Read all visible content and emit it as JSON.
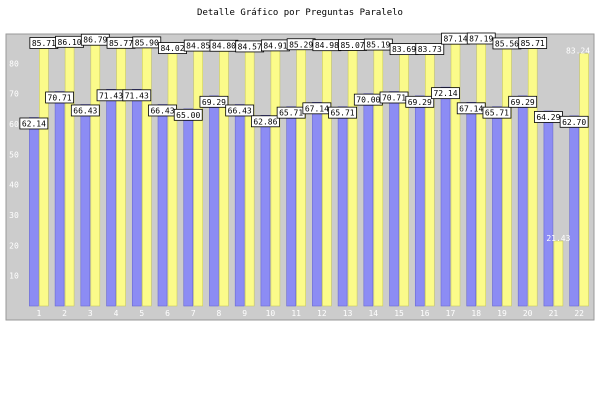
{
  "chart_data": {
    "type": "bar",
    "title": "Detalle Gráfico por Preguntas Paralelo",
    "xlabel": "",
    "ylabel": "",
    "ylim": [
      0,
      89
    ],
    "yticks": [
      10,
      20,
      30,
      40,
      50,
      60,
      70,
      80
    ],
    "grid": false,
    "categories": [
      "1",
      "2",
      "3",
      "4",
      "5",
      "6",
      "7",
      "8",
      "9",
      "10",
      "11",
      "12",
      "13",
      "14",
      "15",
      "16",
      "17",
      "18",
      "19",
      "20",
      "21",
      "22"
    ],
    "series": [
      {
        "values": [
          62.14,
          70.71,
          66.43,
          71.43,
          71.43,
          66.43,
          65.0,
          69.29,
          66.43,
          62.86,
          65.71,
          67.14,
          65.71,
          70.0,
          70.71,
          69.29,
          72.14,
          67.14,
          65.71,
          69.29,
          64.29,
          62.7
        ]
      },
      {
        "values": [
          85.71,
          86.1,
          86.79,
          85.77,
          85.9,
          84.02,
          84.85,
          84.8,
          84.57,
          84.91,
          85.29,
          84.98,
          85.07,
          85.19,
          83.69,
          83.73,
          87.14,
          87.19,
          85.56,
          85.71,
          21.43,
          83.24
        ]
      }
    ],
    "colors": {
      "series1": "#8c8cf4",
      "series2": "#fbfb8a",
      "plot_bg": "#cccccc"
    }
  }
}
